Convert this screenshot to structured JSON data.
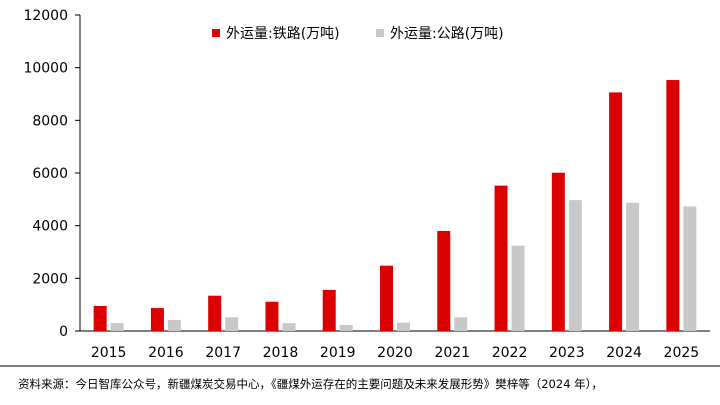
{
  "chart_data": {
    "type": "bar",
    "categories": [
      "2015",
      "2016",
      "2017",
      "2018",
      "2019",
      "2020",
      "2021",
      "2022",
      "2023",
      "2024",
      "2025"
    ],
    "series": [
      {
        "name": "外运量:铁路(万吨)",
        "color": "#dd0000",
        "values": [
          950,
          870,
          1340,
          1110,
          1560,
          2480,
          3800,
          5520,
          6010,
          9060,
          9530
        ]
      },
      {
        "name": "外运量:公路(万吨)",
        "color": "#c8c8c8",
        "values": [
          300,
          420,
          520,
          300,
          230,
          320,
          520,
          3240,
          4970,
          4870,
          4730
        ]
      }
    ],
    "ylim": [
      0,
      12000
    ],
    "yticks": [
      0,
      2000,
      4000,
      6000,
      8000,
      10000,
      12000
    ],
    "grid": false,
    "legend_position": "top"
  },
  "source_text": "资料来源：今日智库公众号，新疆煤炭交易中心，《疆煤外运存在的主要问题及未来发展形势》樊梓等（2024 年），"
}
